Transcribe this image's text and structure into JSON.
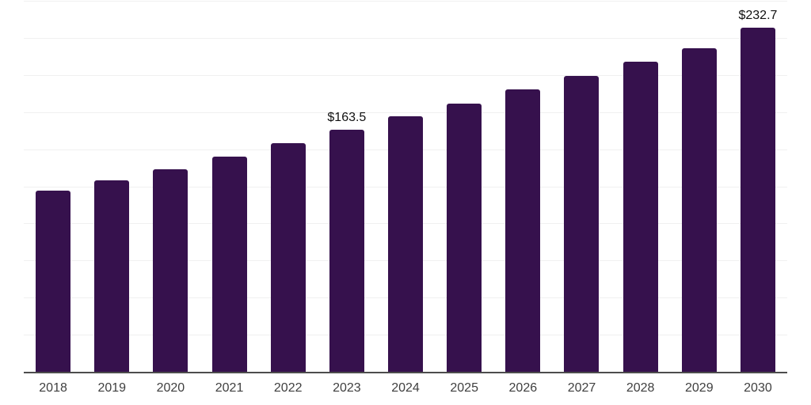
{
  "chart_data": {
    "type": "bar",
    "title": "",
    "xlabel": "",
    "ylabel": "",
    "categories": [
      "2018",
      "2019",
      "2020",
      "2021",
      "2022",
      "2023",
      "2024",
      "2025",
      "2026",
      "2027",
      "2028",
      "2029",
      "2030"
    ],
    "values": [
      122.7,
      129.8,
      137.0,
      145.5,
      154.5,
      163.5,
      172.5,
      181.5,
      191.1,
      200.1,
      209.6,
      218.6,
      232.7
    ],
    "data_labels": [
      "",
      "",
      "",
      "",
      "",
      "$163.5",
      "",
      "",
      "",
      "",
      "",
      "",
      "$232.7"
    ],
    "ylim": [
      0,
      250
    ],
    "grid_step": 25,
    "grid": true,
    "legend": false,
    "y_tick_labels_shown": false,
    "colors": {
      "bar": "#36114d",
      "background": "#ffffff",
      "gridline": "#f0f0f0",
      "axis_line": "#4d4d4d",
      "tick_label": "#3f3f3f",
      "value_label": "#111111"
    }
  }
}
